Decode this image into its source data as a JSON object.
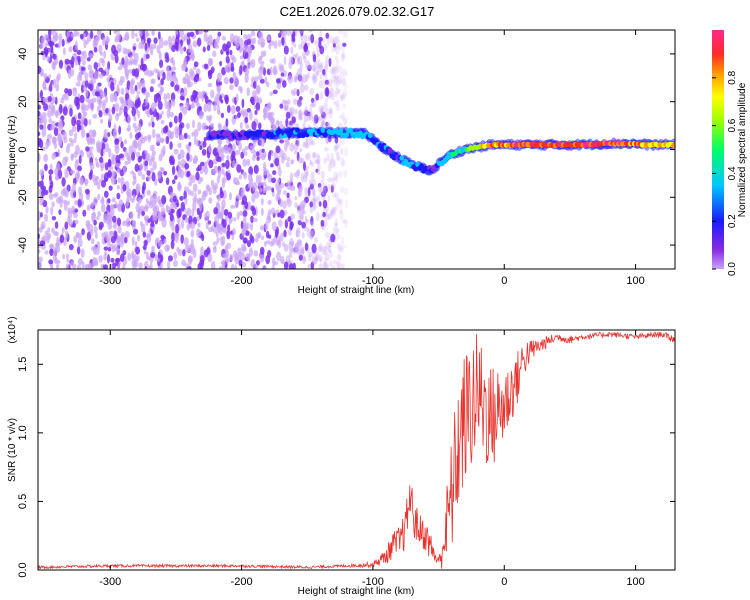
{
  "title": "C2E1.2026.079.02.32.G17",
  "colors": {
    "snr_line": "#e8322c",
    "track_core": "#e8322c",
    "scatter": "#7b2ff0",
    "scatter_light": "#c9a3f7",
    "axis": "#000000"
  },
  "colorbar": {
    "label": "Normalized spectral amplitude",
    "ticks": [
      "0.0",
      "0.2",
      "0.4",
      "0.6",
      "0.8"
    ],
    "ticks_values": [
      0.0,
      0.2,
      0.4,
      0.6,
      0.8
    ],
    "range": [
      0,
      1
    ],
    "colormap": "rainbow (magenta-blue-cyan-green-yellow-red-pink)"
  },
  "chart_data": [
    {
      "type": "heatmap",
      "title": "C2E1.2026.079.02.32.G17",
      "xlabel": "Height of straight line (km)",
      "ylabel": "Frequency (Hz)",
      "xlim": [
        -355,
        130
      ],
      "ylim": [
        -50,
        50
      ],
      "x_ticks": [
        "-300",
        "-200",
        "-100",
        "0",
        "100"
      ],
      "x_tick_values": [
        -300,
        -200,
        -100,
        0,
        100
      ],
      "y_ticks": [
        "-40",
        "-20",
        "0",
        "20",
        "40"
      ],
      "y_tick_values": [
        -40,
        -20,
        0,
        20,
        40
      ],
      "noise_region": {
        "x_from": -355,
        "x_to": -120,
        "freq_from": -50,
        "freq_to": 50
      },
      "track": {
        "x": [
          -225,
          -200,
          -180,
          -160,
          -140,
          -120,
          -105,
          -95,
          -85,
          -75,
          -68,
          -60,
          -55,
          -48,
          -40,
          -30,
          -20,
          -10,
          0,
          20,
          40,
          60,
          80,
          95,
          110,
          130
        ],
        "freq": [
          6,
          6,
          6.5,
          7,
          7,
          7,
          6.5,
          2,
          -2,
          -5,
          -7,
          -8,
          -9,
          -5,
          -2,
          0,
          1,
          2,
          2,
          2,
          2,
          2,
          2.5,
          2.5,
          2,
          2
        ],
        "amplitude": [
          0.15,
          0.2,
          0.3,
          0.3,
          0.35,
          0.45,
          0.4,
          0.3,
          0.25,
          0.3,
          0.35,
          0.3,
          0.2,
          0.35,
          0.45,
          0.55,
          0.7,
          0.85,
          0.9,
          0.95,
          0.95,
          0.95,
          0.95,
          0.9,
          0.85,
          0.8
        ]
      }
    },
    {
      "type": "line",
      "xlabel": "Height of straight line (km)",
      "ylabel": "SNR (10 * v/v)",
      "y_multiplier": "(x10⁴)",
      "xlim": [
        -355,
        130
      ],
      "ylim": [
        0,
        1.75
      ],
      "x_ticks": [
        "-300",
        "-200",
        "-100",
        "0",
        "100"
      ],
      "x_tick_values": [
        -300,
        -200,
        -100,
        0,
        100
      ],
      "y_ticks": [
        "0.0",
        "0.5",
        "1.0",
        "1.5"
      ],
      "y_tick_values": [
        0,
        0.5,
        1.0,
        1.5
      ],
      "series": [
        {
          "x": [
            -355,
            -300,
            -250,
            -200,
            -150,
            -120,
            -100,
            -90,
            -85,
            -80,
            -75,
            -72,
            -68,
            -65,
            -60,
            -55,
            -50,
            -45,
            -40,
            -35,
            -30,
            -25,
            -20,
            -15,
            -10,
            -5,
            0,
            5,
            10,
            15,
            20,
            30,
            40,
            50,
            60,
            80,
            100,
            120,
            130
          ],
          "y": [
            0.02,
            0.03,
            0.03,
            0.03,
            0.02,
            0.03,
            0.04,
            0.1,
            0.18,
            0.2,
            0.3,
            0.55,
            0.35,
            0.3,
            0.25,
            0.15,
            0.05,
            0.25,
            0.55,
            0.9,
            1.1,
            1.2,
            1.3,
            1.2,
            1.1,
            1.15,
            1.2,
            1.3,
            1.4,
            1.55,
            1.6,
            1.65,
            1.7,
            1.68,
            1.7,
            1.72,
            1.7,
            1.72,
            1.68
          ],
          "noise_amplitude": [
            0.01,
            0.01,
            0.01,
            0.01,
            0.01,
            0.01,
            0.02,
            0.06,
            0.1,
            0.12,
            0.15,
            0.18,
            0.15,
            0.12,
            0.12,
            0.1,
            0.04,
            0.25,
            0.45,
            0.5,
            0.5,
            0.5,
            0.45,
            0.45,
            0.4,
            0.35,
            0.3,
            0.25,
            0.2,
            0.15,
            0.08,
            0.05,
            0.03,
            0.03,
            0.02,
            0.02,
            0.02,
            0.02,
            0.03
          ]
        }
      ]
    }
  ]
}
